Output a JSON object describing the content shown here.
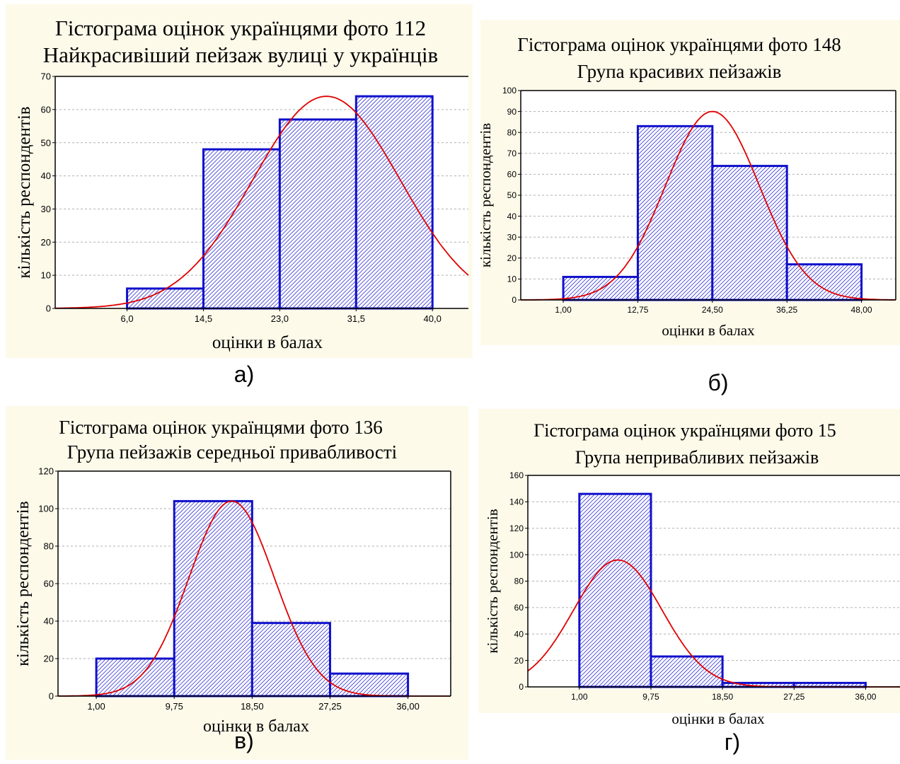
{
  "chart_data": [
    {
      "type": "bar",
      "title": "Гістограма оцінок українцями фото 112",
      "subtitle": "Найкрасивіший пейзаж вулиці у українців",
      "xlabel": "оцінки в балах",
      "ylabel": "кількість респондентів",
      "caption": "а)",
      "x_ticks": [
        "6,0",
        "14,5",
        "23,0",
        "31,5",
        "40,0"
      ],
      "bin_edges": [
        6,
        14.5,
        23,
        31.5,
        40
      ],
      "values": [
        6,
        48,
        57,
        64
      ],
      "xlim": [
        -2,
        44
      ],
      "ylim": [
        0,
        70
      ],
      "y_ticks": [
        0,
        10,
        20,
        30,
        40,
        50,
        60,
        70
      ],
      "curve": {
        "mu": 28.2,
        "sigma": 8.2,
        "peak": 64
      },
      "grid": true,
      "bar_color": "#1010cc",
      "curve_color": "#e00000",
      "panel_background": "#fdfaea"
    },
    {
      "type": "bar",
      "title": "Гістограма оцінок українцями фото 148",
      "subtitle": "Група красивих пейзажів",
      "xlabel": "оцінки в балах",
      "ylabel": "кількість респондентів",
      "caption": "б)",
      "x_ticks": [
        "1,00",
        "12,75",
        "24,50",
        "36,25",
        "48,00"
      ],
      "bin_edges": [
        1,
        12.75,
        24.5,
        36.25,
        48
      ],
      "values": [
        11,
        83,
        64,
        17
      ],
      "xlim": [
        -5.7,
        53.4
      ],
      "ylim": [
        0,
        100
      ],
      "y_ticks": [
        0,
        10,
        20,
        30,
        40,
        50,
        60,
        70,
        80,
        90,
        100
      ],
      "curve": {
        "mu": 24.5,
        "sigma": 7.4,
        "peak": 90
      },
      "grid": true,
      "bar_color": "#1010cc",
      "curve_color": "#e00000",
      "panel_background": "#fdfaea"
    },
    {
      "type": "bar",
      "title": "Гістограма оцінок українцями фото 136",
      "subtitle": "Група пейзажів середньої привабливості",
      "xlabel": "оцінки в балах",
      "ylabel": "кількість респондентів",
      "caption": "в)",
      "x_ticks": [
        "1,00",
        "9,75",
        "18,50",
        "27,25",
        "36,00"
      ],
      "bin_edges": [
        1,
        9.75,
        18.5,
        27.25,
        36
      ],
      "values": [
        20,
        104,
        39,
        12
      ],
      "xlim": [
        -3.3,
        40.8
      ],
      "ylim": [
        0,
        120
      ],
      "y_ticks": [
        0,
        20,
        40,
        60,
        80,
        100,
        120
      ],
      "curve": {
        "mu": 16.2,
        "sigma": 4.8,
        "peak": 104
      },
      "grid": true,
      "bar_color": "#1010cc",
      "curve_color": "#e00000",
      "panel_background": "#fdfaea"
    },
    {
      "type": "bar",
      "title": "Гістограма оцінок українцями фото 15",
      "subtitle": "Група непривабливих пейзажів",
      "xlabel": "оцінки в балах",
      "ylabel": "кількість респондентів",
      "caption": "г)",
      "x_ticks": [
        "1,00",
        "9,75",
        "18,50",
        "27,25",
        "36,00"
      ],
      "bin_edges": [
        1,
        9.75,
        18.5,
        27.25,
        36
      ],
      "values": [
        146,
        23,
        3,
        3
      ],
      "xlim": [
        -5.3,
        40.2
      ],
      "ylim": [
        0,
        160
      ],
      "y_ticks": [
        0,
        20,
        40,
        60,
        80,
        100,
        120,
        140,
        160
      ],
      "curve": {
        "mu": 5.7,
        "sigma": 5.4,
        "peak": 96
      },
      "grid": true,
      "bar_color": "#1010cc",
      "curve_color": "#e00000",
      "panel_background": "#fdfaea"
    }
  ]
}
